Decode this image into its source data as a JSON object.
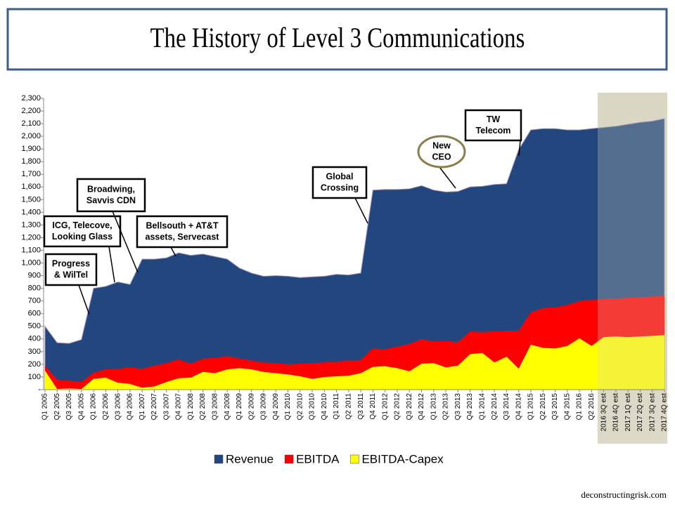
{
  "chart_data": {
    "type": "area",
    "title": "The History of Level 3 Communications",
    "source": "deconstructingrisk.com",
    "categories": [
      "Q1 2005",
      "Q2 2005",
      "Q3 2005",
      "Q4 2005",
      "Q1 2006",
      "Q2 2006",
      "Q3 2006",
      "Q4 2006",
      "Q1 2007",
      "Q2 2007",
      "Q3 2007",
      "Q4 2007",
      "Q1 2008",
      "Q2 2008",
      "Q3 2008",
      "Q4 2008",
      "Q1 2009",
      "Q2 2009",
      "Q3 2009",
      "Q4 2009",
      "Q1 2010",
      "Q2 2010",
      "Q3 2010",
      "Q4 2010",
      "Q1 2011",
      "Q2 2011",
      "Q3 2011",
      "Q4 2011",
      "Q1 2012",
      "Q2 2012",
      "Q3 2012",
      "Q4 2012",
      "Q1 2013",
      "Q2 2013",
      "Q3 2013",
      "Q4 2013",
      "Q1 2014",
      "Q2 2014",
      "Q3 2014",
      "Q4 2014",
      "Q1 2015",
      "Q2 2015",
      "Q3 2015",
      "Q4 2015",
      "Q1 2016",
      "Q2 2016",
      "2016 3Q est",
      "2016 4Q est",
      "2017 1Q est",
      "2017 2Q est",
      "2017 3Q est",
      "2017 4Q est"
    ],
    "series": [
      {
        "name": "Revenue",
        "color": "#22477e",
        "values": [
          500,
          370,
          365,
          395,
          800,
          815,
          850,
          830,
          1030,
          1030,
          1040,
          1080,
          1060,
          1070,
          1050,
          1030,
          960,
          920,
          895,
          900,
          895,
          885,
          890,
          895,
          910,
          905,
          920,
          1575,
          1580,
          1580,
          1585,
          1610,
          1575,
          1560,
          1565,
          1600,
          1605,
          1620,
          1625,
          1895,
          2050,
          2060,
          2060,
          2050,
          2050,
          2060,
          2070,
          2080,
          2095,
          2110,
          2120,
          2140
        ]
      },
      {
        "name": "EBITDA",
        "color": "#ff0000",
        "values": [
          190,
          80,
          70,
          60,
          135,
          160,
          165,
          175,
          165,
          190,
          210,
          240,
          205,
          245,
          250,
          265,
          245,
          230,
          215,
          210,
          200,
          205,
          210,
          215,
          220,
          230,
          235,
          325,
          320,
          340,
          360,
          400,
          380,
          385,
          375,
          460,
          455,
          460,
          465,
          465,
          610,
          645,
          650,
          670,
          700,
          710,
          715,
          720,
          725,
          730,
          735,
          740
        ]
      },
      {
        "name": "EBITDA-Capex",
        "color": "#ffff00",
        "values": [
          150,
          5,
          10,
          5,
          85,
          95,
          55,
          45,
          15,
          25,
          60,
          90,
          95,
          140,
          130,
          160,
          170,
          160,
          140,
          130,
          120,
          105,
          85,
          100,
          105,
          110,
          130,
          180,
          185,
          170,
          145,
          205,
          210,
          175,
          190,
          280,
          290,
          215,
          260,
          165,
          355,
          330,
          325,
          345,
          405,
          345,
          415,
          420,
          415,
          420,
          425,
          430
        ]
      }
    ],
    "ylim": [
      0,
      2300
    ],
    "yticks": [
      {
        "value": 0,
        "label": "-"
      },
      100,
      200,
      300,
      400,
      500,
      600,
      700,
      800,
      900,
      {
        "value": 1000,
        "label": "1,000"
      },
      {
        "value": 1100,
        "label": "1,100"
      },
      {
        "value": 1200,
        "label": "1,200"
      },
      {
        "value": 1300,
        "label": "1,300"
      },
      {
        "value": 1400,
        "label": "1,400"
      },
      {
        "value": 1500,
        "label": "1,500"
      },
      {
        "value": 1600,
        "label": "1,600"
      },
      {
        "value": 1700,
        "label": "1,700"
      },
      {
        "value": 1800,
        "label": "1,800"
      },
      {
        "value": 1900,
        "label": "1,900"
      },
      {
        "value": 2000,
        "label": "2,000"
      },
      {
        "value": 2100,
        "label": "2,100"
      },
      {
        "value": 2200,
        "label": "2,200"
      },
      {
        "value": 2300,
        "label": "2,300"
      }
    ],
    "legend": "bottom",
    "annotations": [
      {
        "lines": [
          "Progress",
          "& WilTel"
        ]
      },
      {
        "lines": [
          "ICG, Telecove,",
          "Looking Glass"
        ]
      },
      {
        "lines": [
          "Broadwing,",
          "Savvis CDN"
        ]
      },
      {
        "lines": [
          "Bellsouth + AT&T",
          "assets, Servecast"
        ]
      },
      {
        "lines": [
          "Global",
          "Crossing"
        ]
      },
      {
        "lines": [
          "New",
          "CEO"
        ]
      },
      {
        "lines": [
          "TW",
          "Telecom"
        ]
      }
    ]
  }
}
